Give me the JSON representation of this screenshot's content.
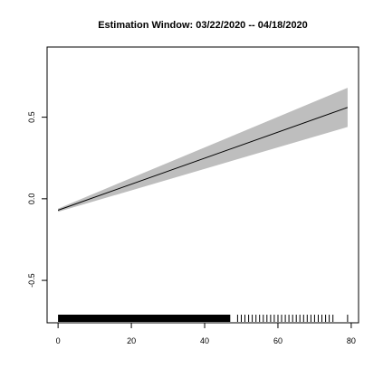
{
  "chart_data": {
    "type": "line",
    "title": "Estimation Window: 03/22/2020 -- 04/18/2020",
    "xlabel": "",
    "ylabel": "",
    "xlim": [
      -3,
      82
    ],
    "ylim": [
      -0.76,
      0.93
    ],
    "x_ticks": [
      0,
      20,
      40,
      60,
      80
    ],
    "x_tick_labels": [
      "0",
      "20",
      "40",
      "60",
      "80"
    ],
    "y_ticks": [
      -0.5,
      0.0,
      0.5
    ],
    "y_tick_labels": [
      "-0.5",
      "0.0",
      "0.5"
    ],
    "grid": false,
    "series": [
      {
        "x": [
          0,
          79
        ],
        "y": [
          -0.07,
          0.56
        ],
        "ci_lower": [
          -0.08,
          0.44
        ],
        "ci_upper": [
          -0.06,
          0.68
        ],
        "line_color": "#000000",
        "band_color": "#bebebe"
      }
    ],
    "rug": {
      "dense_range": [
        0,
        47
      ],
      "values": [
        49,
        50,
        51,
        52,
        53,
        54,
        55,
        56,
        57,
        58,
        59,
        60,
        61,
        62,
        63,
        64,
        65,
        66,
        67,
        68,
        69,
        70,
        71,
        72,
        73,
        74,
        75,
        79
      ]
    }
  }
}
